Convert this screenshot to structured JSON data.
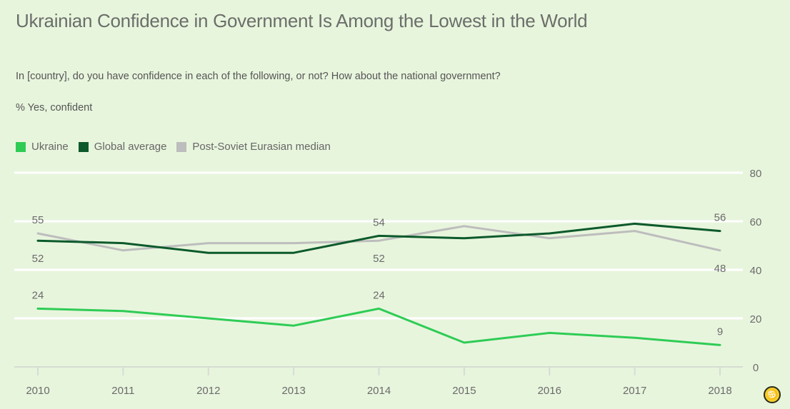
{
  "header": {
    "title": "Ukrainian Confidence in Government Is Among the Lowest in the World",
    "question": "In [country], do you have confidence in each of the following, or not? How about the national government?",
    "unit": "% Yes, confident"
  },
  "legend": [
    {
      "label": "Ukraine",
      "color": "#2ecc55"
    },
    {
      "label": "Global average",
      "color": "#0c5a2c"
    },
    {
      "label": "Post-Soviet Eurasian median",
      "color": "#bdbdbd"
    }
  ],
  "badge": {
    "icon": "cancer-zodiac-icon",
    "glyph": "♋"
  },
  "chart_data": {
    "type": "line",
    "title": "Ukrainian Confidence in Government Is Among the Lowest in the World",
    "subtitle": "In [country], do you have confidence in each of the following, or not? How about the national government?",
    "ylabel": "% Yes, confident",
    "xlabel": "",
    "x": [
      "2010",
      "2011",
      "2012",
      "2013",
      "2014",
      "2015",
      "2016",
      "2017",
      "2018"
    ],
    "ylim": [
      0,
      80
    ],
    "yticks": [
      0,
      20,
      40,
      60,
      80
    ],
    "y_axis_side": "right",
    "grid": true,
    "legend_position": "top-left",
    "series": [
      {
        "name": "Ukraine",
        "color": "#2ecc55",
        "values": [
          24,
          23,
          20,
          17,
          24,
          10,
          14,
          12,
          9
        ]
      },
      {
        "name": "Global average",
        "color": "#0c5a2c",
        "values": [
          52,
          51,
          47,
          47,
          54,
          53,
          55,
          59,
          56
        ]
      },
      {
        "name": "Post-Soviet Eurasian median",
        "color": "#bdbdbd",
        "values": [
          55,
          48,
          51,
          51,
          52,
          58,
          53,
          56,
          48
        ]
      }
    ],
    "annotations": [
      {
        "series": "Post-Soviet Eurasian median",
        "x": "2010",
        "text": "55",
        "position": "above"
      },
      {
        "series": "Global average",
        "x": "2010",
        "text": "52",
        "position": "below"
      },
      {
        "series": "Ukraine",
        "x": "2010",
        "text": "24",
        "position": "above"
      },
      {
        "series": "Global average",
        "x": "2014",
        "text": "54",
        "position": "above"
      },
      {
        "series": "Post-Soviet Eurasian median",
        "x": "2014",
        "text": "52",
        "position": "below"
      },
      {
        "series": "Ukraine",
        "x": "2014",
        "text": "24",
        "position": "above"
      },
      {
        "series": "Global average",
        "x": "2018",
        "text": "56",
        "position": "above"
      },
      {
        "series": "Post-Soviet Eurasian median",
        "x": "2018",
        "text": "48",
        "position": "below"
      },
      {
        "series": "Ukraine",
        "x": "2018",
        "text": "9",
        "position": "above"
      }
    ]
  }
}
